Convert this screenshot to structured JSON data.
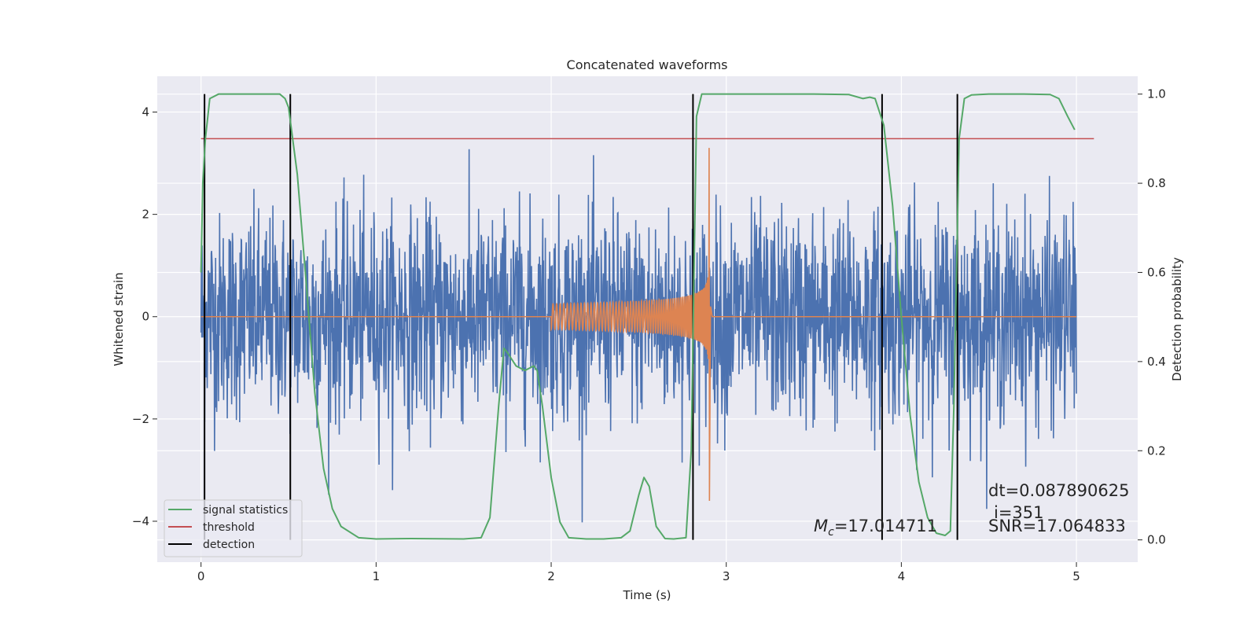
{
  "chart_data": {
    "type": "line",
    "title": "Concatenated waveforms",
    "xlabel": "Time (s)",
    "ylabel": "Whitened strain",
    "ylabel_right": "Detection probability",
    "xlim": [
      -0.25,
      5.35
    ],
    "ylim": [
      -4.8,
      4.7
    ],
    "ylim_right": [
      -0.05,
      1.04
    ],
    "x_ticks": [
      0,
      1,
      2,
      3,
      4,
      5
    ],
    "x_tick_labels": [
      "0",
      "1",
      "2",
      "3",
      "4",
      "5"
    ],
    "y_ticks": [
      -4,
      -2,
      0,
      2,
      4
    ],
    "y_tick_labels": [
      "−4",
      "−2",
      "0",
      "2",
      "4"
    ],
    "y2_ticks": [
      0.0,
      0.2,
      0.4,
      0.6,
      0.8,
      1.0
    ],
    "y2_tick_labels": [
      "0.0",
      "0.2",
      "0.4",
      "0.6",
      "0.8",
      "1.0"
    ],
    "grid": true,
    "legend_placement": "lower-left",
    "series": [
      {
        "name": "",
        "color": "#4c72b0",
        "kind": "whitened-strain-noise",
        "x_range": [
          0,
          5
        ],
        "amplitude_typical": 1.0,
        "y_range": [
          -4.3,
          3.6
        ]
      },
      {
        "name": "",
        "color": "#dd8452",
        "kind": "injected-chirp",
        "x_range": [
          2.0,
          2.9
        ],
        "merger_time": 2.9,
        "peak": 3.3,
        "trough": -3.6
      },
      {
        "name": "signal statistics",
        "color": "#55a868",
        "axis": "right",
        "x": [
          0,
          0.01,
          0.025,
          0.05,
          0.1,
          0.3,
          0.45,
          0.48,
          0.5,
          0.55,
          0.6,
          0.65,
          0.7,
          0.75,
          0.8,
          0.9,
          1.0,
          1.2,
          1.5,
          1.6,
          1.65,
          1.7,
          1.73,
          1.75,
          1.8,
          1.85,
          1.9,
          1.92,
          1.95,
          2.0,
          2.05,
          2.1,
          2.2,
          2.3,
          2.4,
          2.45,
          2.5,
          2.53,
          2.56,
          2.6,
          2.65,
          2.7,
          2.77,
          2.8,
          2.83,
          2.86,
          2.9,
          3.1,
          3.3,
          3.5,
          3.7,
          3.78,
          3.82,
          3.85,
          3.9,
          3.95,
          4.0,
          4.05,
          4.1,
          4.15,
          4.2,
          4.25,
          4.28,
          4.3,
          4.33,
          4.36,
          4.4,
          4.5,
          4.7,
          4.85,
          4.9,
          4.95,
          4.99
        ],
        "values": [
          0.6,
          0.8,
          0.9,
          0.99,
          1.0,
          1.0,
          1.0,
          0.99,
          0.97,
          0.82,
          0.58,
          0.33,
          0.16,
          0.07,
          0.03,
          0.005,
          0.002,
          0.003,
          0.002,
          0.005,
          0.05,
          0.3,
          0.43,
          0.42,
          0.39,
          0.38,
          0.39,
          0.38,
          0.3,
          0.14,
          0.04,
          0.005,
          0.002,
          0.002,
          0.005,
          0.02,
          0.1,
          0.14,
          0.12,
          0.03,
          0.003,
          0.002,
          0.005,
          0.2,
          0.95,
          1.0,
          1.0,
          1.0,
          1.0,
          1.0,
          0.999,
          0.99,
          0.993,
          0.99,
          0.93,
          0.75,
          0.5,
          0.28,
          0.13,
          0.05,
          0.015,
          0.01,
          0.02,
          0.3,
          0.9,
          0.99,
          0.998,
          1.0,
          1.0,
          0.999,
          0.99,
          0.95,
          0.92
        ]
      },
      {
        "name": "threshold",
        "color": "#c44e52",
        "axis": "right",
        "x": [
          0,
          5.1
        ],
        "values": [
          0.9,
          0.9
        ]
      },
      {
        "name": "detection",
        "color": "#000000",
        "kind": "vertical-lines",
        "axis": "right",
        "x": [
          0.02,
          0.51,
          2.81,
          3.89,
          4.32
        ],
        "y_range": [
          0.0,
          1.0
        ]
      }
    ],
    "annotations": {
      "dt": "dt=0.087890625",
      "i": "i=351",
      "mc_symbol": "M",
      "mc_subscript": "c",
      "mc_value": "=17.014711",
      "snr": "SNR=17.064833"
    }
  }
}
